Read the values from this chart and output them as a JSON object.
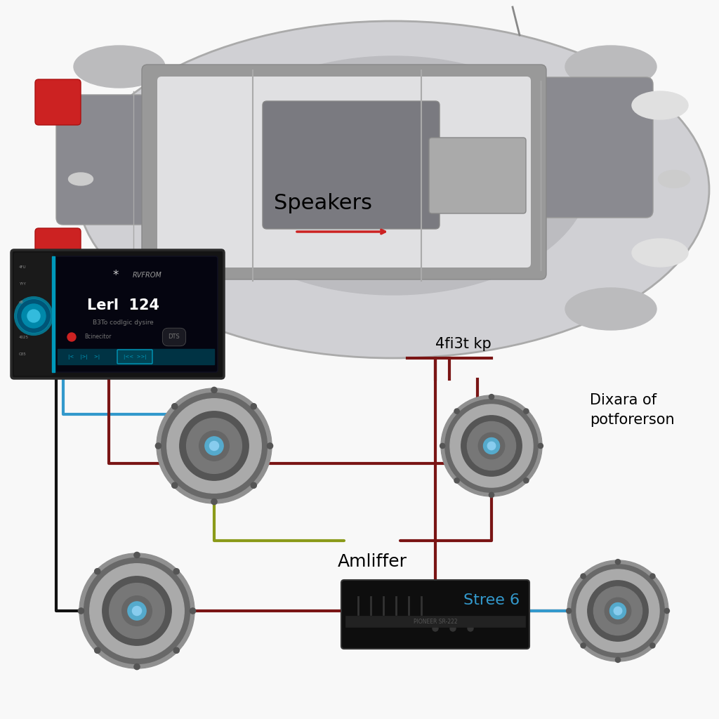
{
  "background_color": "#f8f8f8",
  "labels": {
    "speakers": "Speakers",
    "amplifier": "Amliffer",
    "subwoofer": "Stree 6",
    "head_unit_label": "4fi3t kp",
    "diagram_label": "Dixara of\npotforerson"
  },
  "wire_colors": {
    "blue": "#3399CC",
    "dark_red": "#7A1515",
    "olive": "#8B9A1A",
    "black": "#111111",
    "red": "#AA2020"
  },
  "car_body": "#C8C8CC",
  "car_roof": "#BBBBBD",
  "car_window": "#8A8A90",
  "car_dark": "#6A6A70",
  "brake_light": "#CC3333",
  "head_unit_frame": "#181818",
  "head_unit_screen": "#050510",
  "knob_outer": "#006688",
  "knob_mid": "#0099BB",
  "knob_inner": "#33BBDD",
  "screen_text_main": "#FFFFFF",
  "screen_text_sub": "#888888",
  "amp_body": "#111111",
  "spk_ring1": "#AAAAAA",
  "spk_ring2": "#777777",
  "spk_cone": "#555555",
  "spk_center": "#999999",
  "spk_dust": "#44AACC"
}
